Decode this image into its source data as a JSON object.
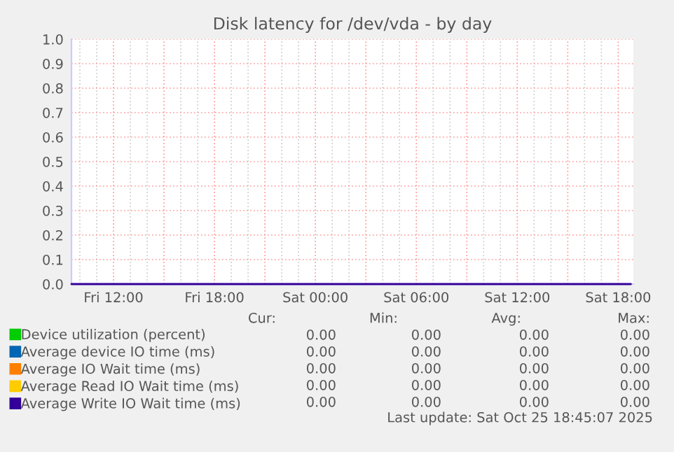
{
  "chart_data": {
    "type": "line",
    "title": "Disk latency for /dev/vda - by day",
    "xlim": [
      "2025-10-24T09:30",
      "2025-10-25T18:54"
    ],
    "ylim": [
      0,
      1.0
    ],
    "xticks": [
      {
        "value": "2025-10-24T12:00",
        "label": "Fri 12:00"
      },
      {
        "value": "2025-10-24T15:00",
        "label": null
      },
      {
        "value": "2025-10-24T18:00",
        "label": "Fri 18:00"
      },
      {
        "value": "2025-10-24T21:00",
        "label": null
      },
      {
        "value": "2025-10-25T00:00",
        "label": "Sat 00:00"
      },
      {
        "value": "2025-10-25T03:00",
        "label": null
      },
      {
        "value": "2025-10-25T06:00",
        "label": "Sat 06:00"
      },
      {
        "value": "2025-10-25T09:00",
        "label": null
      },
      {
        "value": "2025-10-25T12:00",
        "label": "Sat 12:00"
      },
      {
        "value": "2025-10-25T15:00",
        "label": null
      },
      {
        "value": "2025-10-25T18:00",
        "label": "Sat 18:00"
      }
    ],
    "yticks": [
      {
        "value": 0.0,
        "label": "0.0"
      },
      0.1,
      0.2,
      0.3,
      0.4,
      0.5,
      0.6,
      0.7,
      0.8,
      0.9,
      {
        "value": 1.0,
        "label": "1.0"
      }
    ],
    "grid": true,
    "legend": "bottom",
    "series": [
      {
        "name": "Device utilization (percent)",
        "color": "#00cc00"
      },
      {
        "name": "Average device IO time (ms)",
        "color": "#0066b3"
      },
      {
        "name": "Average IO Wait time (ms)",
        "color": "#ff8000"
      },
      {
        "name": "Average Read IO Wait time (ms)",
        "color": "#ffcc00"
      },
      {
        "name": "Average Write IO Wait time (ms)",
        "color": "#330099",
        "x": [
          "2025-10-24T09:30",
          "2025-10-25T18:45"
        ],
        "values": [
          0,
          0
        ]
      }
    ],
    "annotations": [
      "Cur:",
      "Min:",
      "Avg:",
      "Max:",
      "0.00",
      "0.00",
      "0.00",
      "0.00",
      "0.00",
      "0.00",
      "0.00",
      "0.00",
      "0.00",
      "0.00",
      "0.00",
      "0.00",
      "0.00",
      "0.00",
      "0.00",
      "0.00",
      "0.00",
      "0.00",
      "0.00",
      "0.00",
      "Last update: Sat Oct 25 18:45:07 2025"
    ]
  }
}
